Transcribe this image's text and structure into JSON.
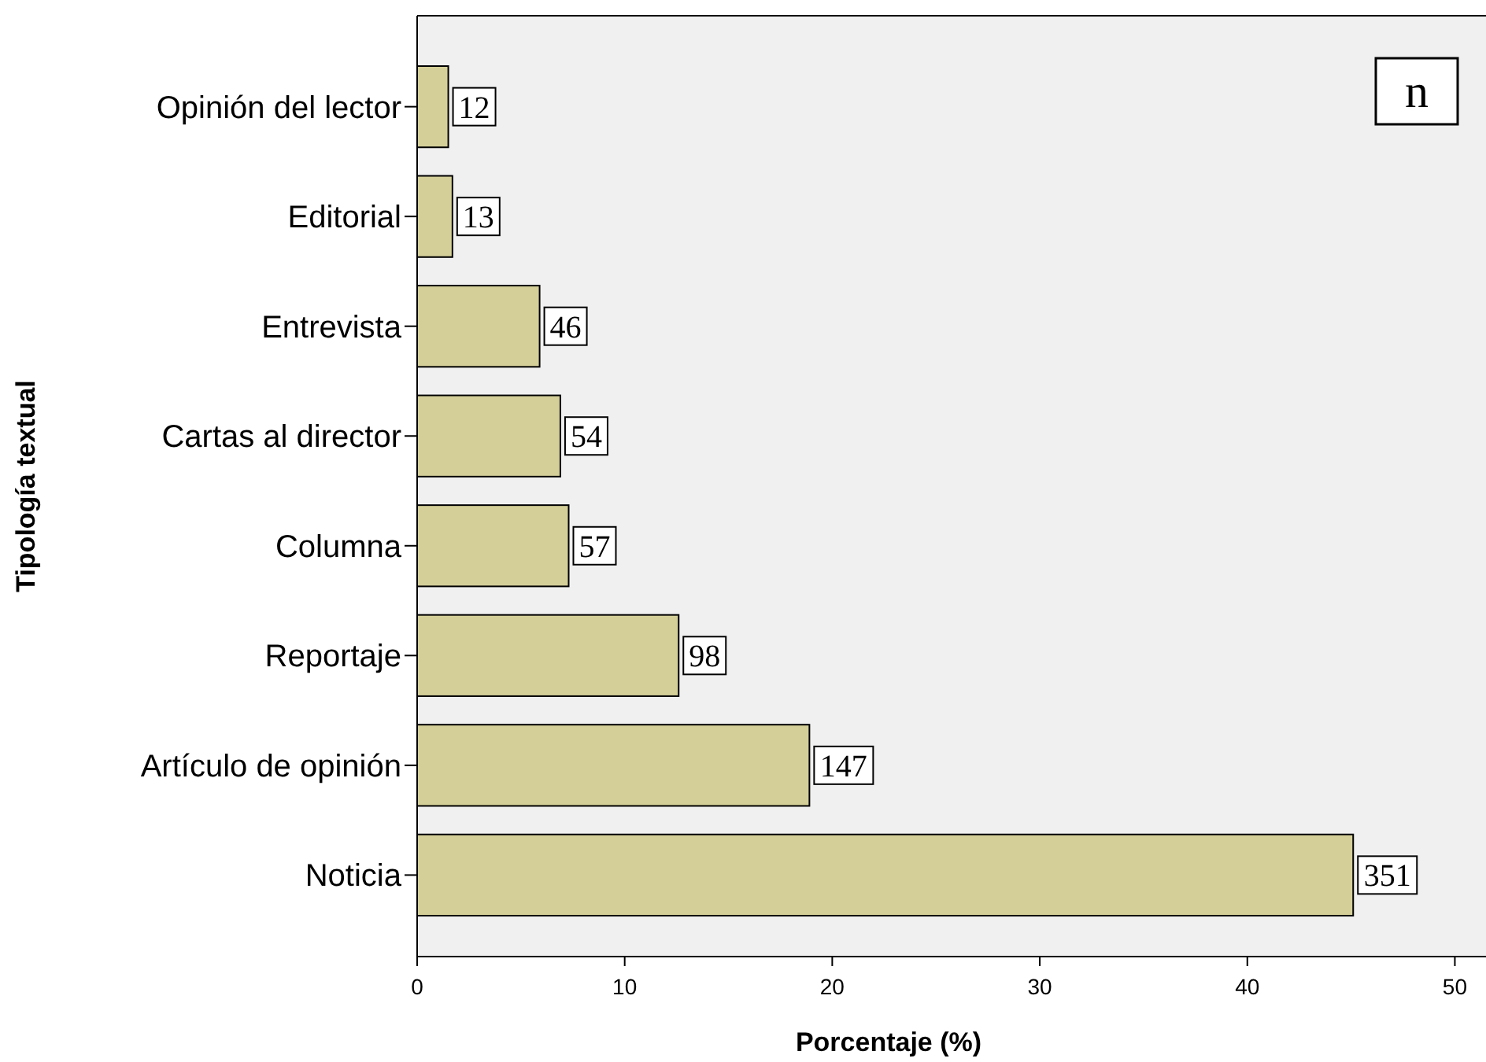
{
  "chart_data": {
    "type": "bar",
    "orientation": "horizontal",
    "xlabel": "Porcentaje (%)",
    "ylabel": "Tipología textual",
    "categories": [
      "Opinión del lector",
      "Editorial",
      "Entrevista",
      "Cartas al director",
      "Columna",
      "Reportaje",
      "Artículo de opinión",
      "Noticia"
    ],
    "values": [
      1.5,
      1.7,
      5.9,
      6.9,
      7.3,
      12.6,
      18.9,
      45.1
    ],
    "color": "#d4cf98",
    "xlim": [
      0,
      51.5
    ],
    "xticks": [
      0,
      10,
      20,
      30,
      40,
      50
    ],
    "annotations": [
      "n",
      {
        "text": "12",
        "x": 1.5,
        "y": "Opinión del lector"
      },
      {
        "text": "13",
        "x": 1.7,
        "y": "Editorial"
      },
      {
        "text": "46",
        "x": 5.9,
        "y": "Entrevista"
      },
      {
        "text": "54",
        "x": 6.9,
        "y": "Cartas al director"
      },
      {
        "text": "57",
        "x": 7.3,
        "y": "Columna"
      },
      {
        "text": "98",
        "x": 12.6,
        "y": "Reportaje"
      },
      {
        "text": "147",
        "x": 18.9,
        "y": "Artículo de opinión"
      },
      {
        "text": "351",
        "x": 45.1,
        "y": "Noticia"
      }
    ],
    "grid": false
  }
}
